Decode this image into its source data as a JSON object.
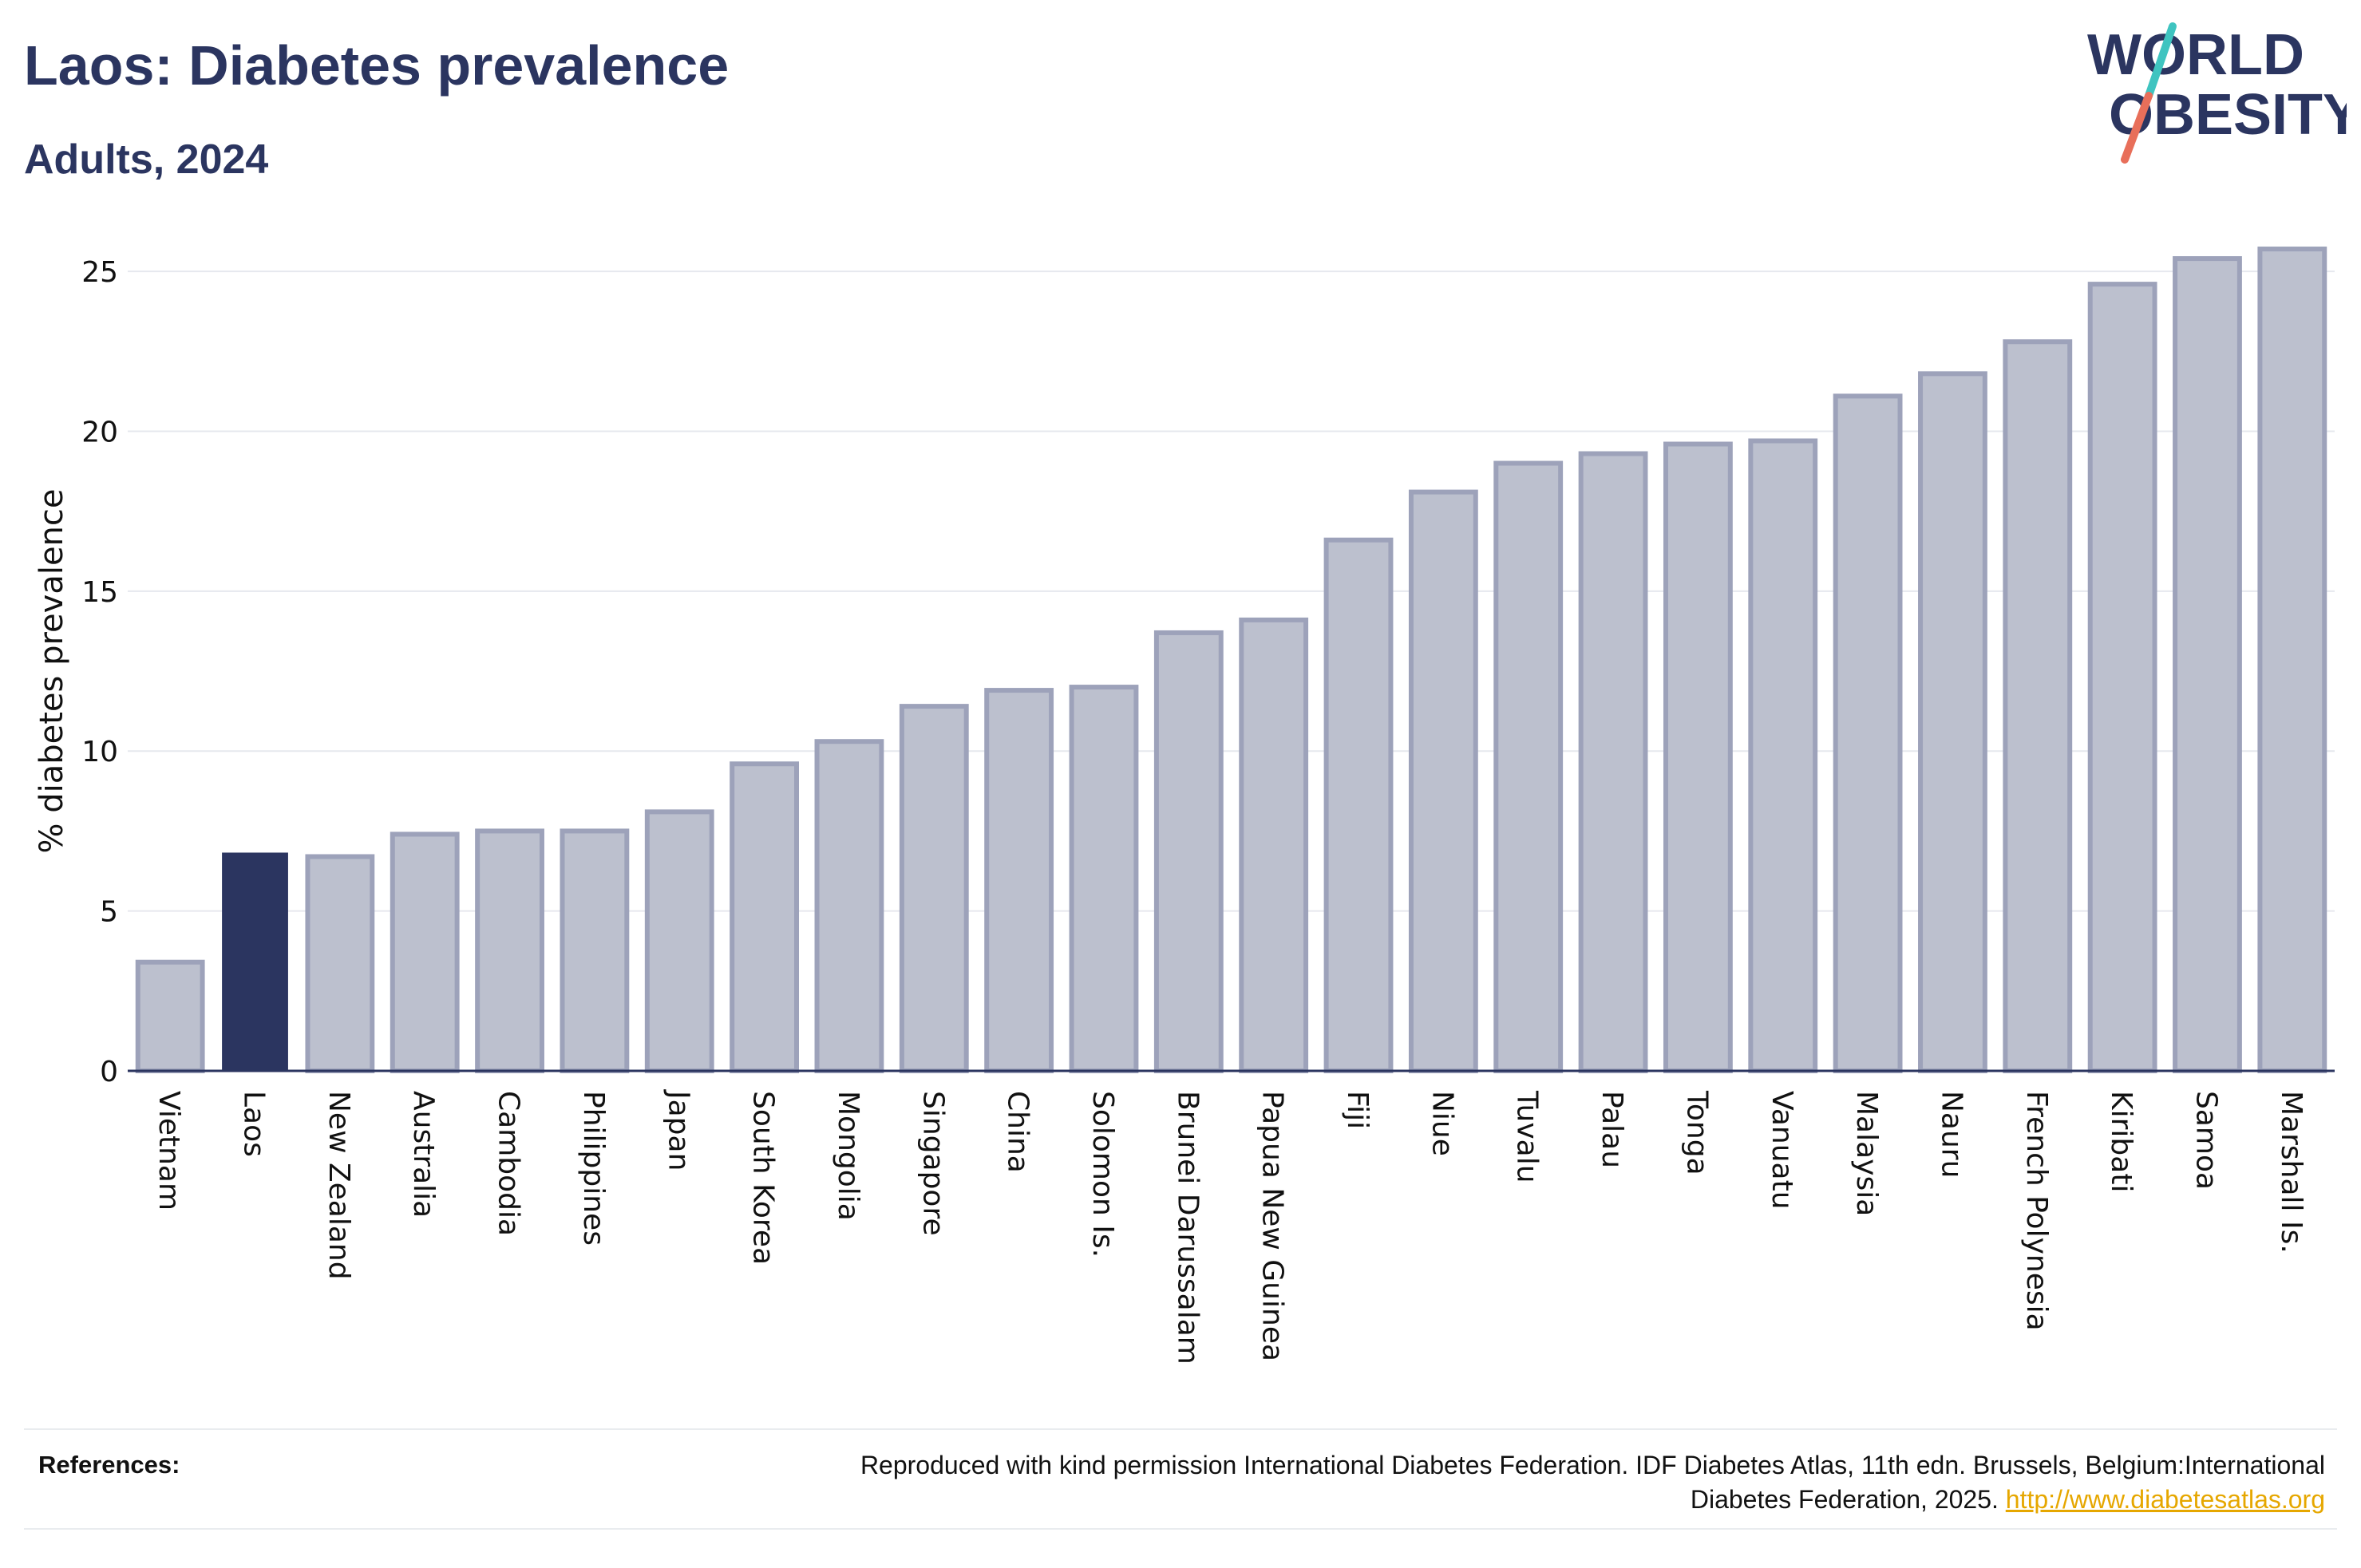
{
  "header": {
    "title": "Laos: Diabetes prevalence",
    "subtitle": "Adults, 2024"
  },
  "logo": {
    "line1": "WORLD",
    "line2": "OBESITY",
    "slash_colors": [
      "#3fc4c0",
      "#e86f5a"
    ]
  },
  "colors": {
    "highlight_bar": "#2b3560",
    "default_bar_fill": "#bcc0ce",
    "default_bar_stroke": "#9da2ba",
    "gridline": "#e6e8ee",
    "axis": "#2b3560",
    "link": "#e6a700"
  },
  "chart_data": {
    "type": "bar",
    "title": "Laos: Diabetes prevalence",
    "subtitle": "Adults, 2024",
    "xlabel": "",
    "ylabel": "% diabetes prevalence",
    "ylim": [
      0,
      26
    ],
    "yticks": [
      0,
      5,
      10,
      15,
      20,
      25
    ],
    "grid": true,
    "highlight": "Laos",
    "categories": [
      "Vietnam",
      "Laos",
      "New Zealand",
      "Australia",
      "Cambodia",
      "Philippines",
      "Japan",
      "South Korea",
      "Mongolia",
      "Singapore",
      "China",
      "Solomon Is.",
      "Brunei Darussalam",
      "Papua New Guinea",
      "Fiji",
      "Niue",
      "Tuvalu",
      "Palau",
      "Tonga",
      "Vanuatu",
      "Malaysia",
      "Nauru",
      "French Polynesia",
      "Kiribati",
      "Samoa",
      "Marshall Is."
    ],
    "values": [
      3.4,
      6.8,
      6.7,
      7.4,
      7.5,
      7.5,
      8.1,
      9.6,
      10.3,
      11.4,
      11.9,
      12.0,
      13.7,
      14.1,
      16.6,
      18.1,
      19.0,
      19.3,
      19.6,
      19.7,
      21.1,
      21.8,
      22.8,
      24.6,
      25.4,
      25.7
    ]
  },
  "footer": {
    "references_label": "References:",
    "reference_line1": "Reproduced with kind permission International Diabetes Federation. IDF Diabetes Atlas, 11th edn. Brussels, Belgium:International",
    "reference_line2": "Diabetes Federation, 2025.",
    "reference_link": "http://www.diabetesatlas.org"
  }
}
